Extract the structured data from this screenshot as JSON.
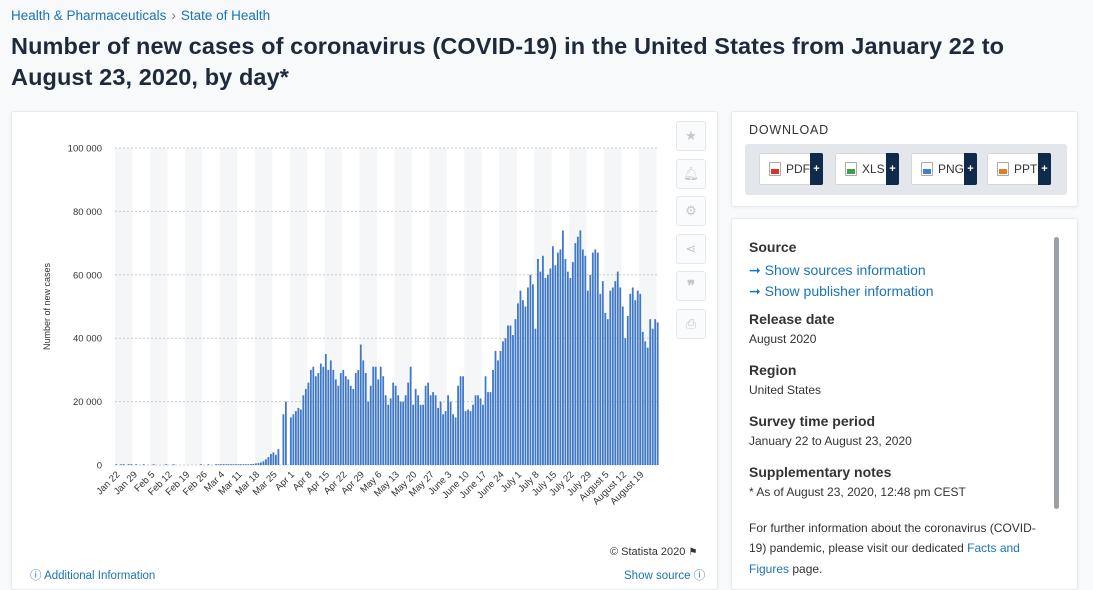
{
  "breadcrumb": {
    "item1": "Health & Pharmaceuticals",
    "sep": "›",
    "item2": "State of Health"
  },
  "page_title": "Number of new cases of coronavirus (COVID-19) in the United States from January 22 to August 23, 2020, by day*",
  "chart_actions": [
    "star-icon",
    "bell-icon",
    "gear-icon",
    "share-icon",
    "quote-icon",
    "print-icon"
  ],
  "chart_footer": {
    "copyright": "© Statista 2020",
    "additional_info": "Additional Information",
    "show_source": "Show source"
  },
  "colors": {
    "bar": "#3f78c9",
    "link": "#1b73b9",
    "dark": "#0f2a4a"
  },
  "download": {
    "title": "DOWNLOAD",
    "buttons": [
      {
        "label": "PDF",
        "icon": "pdf-file-icon"
      },
      {
        "label": "XLS",
        "icon": "xls-file-icon"
      },
      {
        "label": "PNG",
        "icon": "png-file-icon"
      },
      {
        "label": "PPT",
        "icon": "ppt-file-icon"
      }
    ],
    "plus": "+"
  },
  "info": {
    "source_title": "Source",
    "source_link1": "➞ Show sources information",
    "source_link2": "➞ Show publisher information",
    "release_title": "Release date",
    "release_value": "August 2020",
    "region_title": "Region",
    "region_value": "United States",
    "survey_title": "Survey time period",
    "survey_value": "January 22 to August 23, 2020",
    "notes_title": "Supplementary notes",
    "notes_value": "* As of August 23, 2020, 12:48 pm CEST",
    "further_text": "For further information about the coronavirus (COVID-19) pandemic, please visit our dedicated",
    "further_link": "Facts and Figures",
    "further_end": " page."
  },
  "chart_data": {
    "type": "bar",
    "ylabel": "Number of new cases",
    "ylim": [
      0,
      100000
    ],
    "yticks": [
      0,
      20000,
      40000,
      60000,
      80000,
      100000
    ],
    "ytick_labels": [
      "0",
      "20 000",
      "40 000",
      "60 000",
      "80 000",
      "100 000"
    ],
    "xtick_labels": [
      "Jan 22",
      "Jan 29",
      "Feb 5",
      "Feb 12",
      "Feb 19",
      "Feb 26",
      "Mar 4",
      "Mar 11",
      "Mar 18",
      "Mar 25",
      "Apr 1",
      "Apr 8",
      "Apr 15",
      "Apr 22",
      "Apr 29",
      "May 6",
      "May 13",
      "May 20",
      "May 27",
      "June 3",
      "June 10",
      "June 17",
      "June 24",
      "July 1",
      "July 8",
      "July 15",
      "July 22",
      "July 29",
      "August 5",
      "August 12",
      "August 19"
    ],
    "grid": true,
    "start_date": "2020-01-22",
    "values": [
      1,
      0,
      1,
      2,
      0,
      1,
      2,
      0,
      1,
      0,
      0,
      1,
      0,
      0,
      0,
      1,
      0,
      0,
      0,
      0,
      1,
      0,
      0,
      1,
      0,
      0,
      0,
      0,
      0,
      0,
      0,
      0,
      0,
      0,
      1,
      0,
      0,
      1,
      0,
      0,
      1,
      2,
      5,
      8,
      10,
      20,
      25,
      40,
      60,
      70,
      120,
      150,
      200,
      250,
      280,
      350,
      500,
      600,
      800,
      1200,
      1800,
      2500,
      3500,
      4000,
      3200,
      5000,
      0,
      16000,
      20000,
      0,
      15000,
      16000,
      17000,
      18000,
      17500,
      22000,
      24000,
      26000,
      30000,
      31000,
      28000,
      29000,
      32000,
      31000,
      35000,
      30000,
      33000,
      30000,
      27000,
      25000,
      29000,
      30000,
      28000,
      27000,
      25000,
      24000,
      29000,
      30000,
      38000,
      33000,
      29000,
      20000,
      25000,
      31000,
      31000,
      27000,
      31000,
      28000,
      22000,
      19000,
      21000,
      26000,
      25000,
      22000,
      20000,
      20000,
      22000,
      26000,
      31000,
      19000,
      24000,
      22000,
      19000,
      19000,
      25000,
      26000,
      22000,
      23000,
      22000,
      18000,
      20000,
      16000,
      17000,
      22000,
      20000,
      16000,
      15000,
      25000,
      28000,
      28000,
      17000,
      17500,
      17000,
      19000,
      22000,
      22000,
      21000,
      19000,
      28000,
      23000,
      23000,
      30000,
      36000,
      33000,
      36000,
      39000,
      40000,
      44000,
      44000,
      41000,
      46000,
      51000,
      55000,
      52000,
      50000,
      56000,
      60000,
      57000,
      43000,
      65000,
      61000,
      66000,
      59000,
      60000,
      62000,
      69000,
      63000,
      67000,
      68000,
      74000,
      65000,
      61000,
      59000,
      64000,
      70000,
      72000,
      74000,
      68000,
      66000,
      55000,
      60000,
      67000,
      68000,
      67000,
      54000,
      58000,
      48000,
      46000,
      55000,
      56000,
      58000,
      61000,
      56000,
      50000,
      40000,
      47000,
      54000,
      56000,
      52000,
      55000,
      54000,
      42000,
      39000,
      37000,
      46000,
      43000,
      46000,
      45000
    ]
  }
}
